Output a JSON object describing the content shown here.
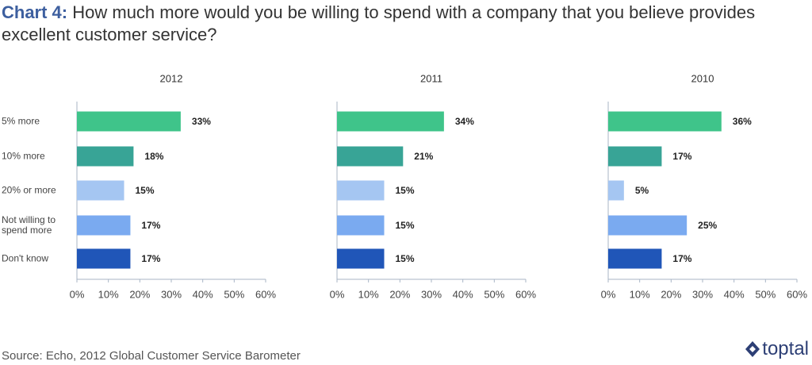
{
  "header": {
    "label": "Chart 4:",
    "title": "How much more would you be willing to spend with a company that you believe provides excellent customer service?"
  },
  "source": "Source: Echo, 2012 Global Customer Service Barometer",
  "logo": "toptal",
  "chart_data": [
    {
      "type": "hbar",
      "title": "2012",
      "categories": [
        "5% more",
        "10% more",
        "20% or more",
        "Not willing to spend more",
        "Don't know"
      ],
      "values": [
        33,
        18,
        15,
        17,
        17
      ],
      "value_labels": [
        "33%",
        "18%",
        "15%",
        "17%",
        "17%"
      ],
      "colors": [
        "#3fc48a",
        "#38a496",
        "#a5c6f2",
        "#7aaaf0",
        "#2056b8"
      ],
      "xlim": [
        0,
        60
      ],
      "xticks": [
        {
          "value": 0,
          "label": "0%"
        },
        {
          "value": 10,
          "label": "10%"
        },
        {
          "value": 20,
          "label": "20%"
        },
        {
          "value": 30,
          "label": "30%"
        },
        {
          "value": 40,
          "label": "40%"
        },
        {
          "value": 50,
          "label": "50%"
        },
        {
          "value": 60,
          "label": "60%"
        }
      ]
    },
    {
      "type": "hbar",
      "title": "2011",
      "values": [
        34,
        21,
        15,
        15,
        15
      ],
      "value_labels": [
        "34%",
        "21%",
        "15%",
        "15%",
        "15%"
      ],
      "colors": [
        "#3fc48a",
        "#38a496",
        "#a5c6f2",
        "#7aaaf0",
        "#2056b8"
      ],
      "xlim": [
        0,
        60
      ],
      "xticks": [
        {
          "value": 0,
          "label": "0%"
        },
        {
          "value": 10,
          "label": "10%"
        },
        {
          "value": 20,
          "label": "20%"
        },
        {
          "value": 30,
          "label": "30%"
        },
        {
          "value": 40,
          "label": "40%"
        },
        {
          "value": 50,
          "label": "50%"
        },
        {
          "value": 60,
          "label": "60%"
        }
      ]
    },
    {
      "type": "hbar",
      "title": "2010",
      "values": [
        36,
        17,
        5,
        25,
        17
      ],
      "value_labels": [
        "36%",
        "17%",
        "5%",
        "25%",
        "17%"
      ],
      "colors": [
        "#3fc48a",
        "#38a496",
        "#a5c6f2",
        "#7aaaf0",
        "#2056b8"
      ],
      "xlim": [
        0,
        60
      ],
      "xticks": [
        {
          "value": 0,
          "label": "0%"
        },
        {
          "value": 10,
          "label": "10%"
        },
        {
          "value": 20,
          "label": "20%"
        },
        {
          "value": 30,
          "label": "30%"
        },
        {
          "value": 40,
          "label": "40%"
        },
        {
          "value": 50,
          "label": "50%"
        },
        {
          "value": 60,
          "label": "60%"
        }
      ]
    }
  ]
}
